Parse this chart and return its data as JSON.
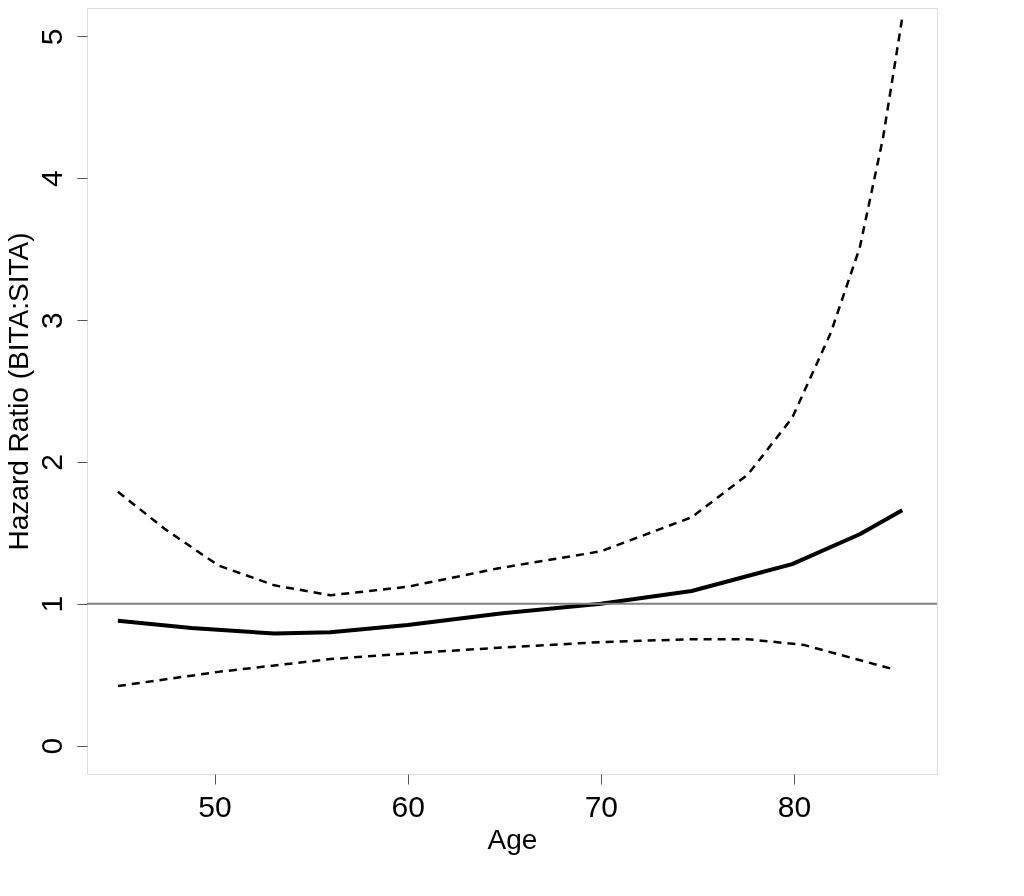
{
  "chart_data": {
    "type": "line",
    "xlabel": "Age",
    "ylabel": "Hazard Ratio (BITA:SITA)",
    "xlim": [
      43.4,
      87.4
    ],
    "ylim": [
      -0.2,
      5.2
    ],
    "xticks": [
      50,
      60,
      70,
      80
    ],
    "yticks": [
      0,
      1,
      2,
      3,
      4,
      5
    ],
    "grid": false,
    "series": [
      {
        "color": "#000000",
        "line_style": "solid",
        "x": [
          45,
          48.8,
          53.1,
          56,
          60,
          64.7,
          70,
          74.7,
          79.9,
          83.4,
          85.6
        ],
        "values": [
          0.88,
          0.83,
          0.79,
          0.8,
          0.85,
          0.93,
          1.0,
          1.09,
          1.28,
          1.49,
          1.66
        ]
      },
      {
        "color": "#000000",
        "line_style": "dashed",
        "x": [
          45,
          47.4,
          50.2,
          53.1,
          56,
          60,
          64.7,
          70,
          74.7,
          77.6,
          79.9,
          81.9,
          83.4,
          84.6,
          85.6
        ],
        "values": [
          1.79,
          1.53,
          1.27,
          1.13,
          1.06,
          1.12,
          1.25,
          1.37,
          1.61,
          1.91,
          2.31,
          2.91,
          3.51,
          4.28,
          5.13
        ]
      },
      {
        "color": "#000000",
        "line_style": "dashed",
        "x": [
          45,
          50.2,
          56,
          60,
          64.7,
          70,
          74.7,
          77.6,
          80.5,
          85.1
        ],
        "values": [
          0.42,
          0.52,
          0.61,
          0.65,
          0.69,
          0.73,
          0.75,
          0.75,
          0.71,
          0.54
        ]
      }
    ],
    "ref_lines": [
      {
        "axis": "y",
        "value": 1,
        "color": "#808080"
      }
    ]
  }
}
